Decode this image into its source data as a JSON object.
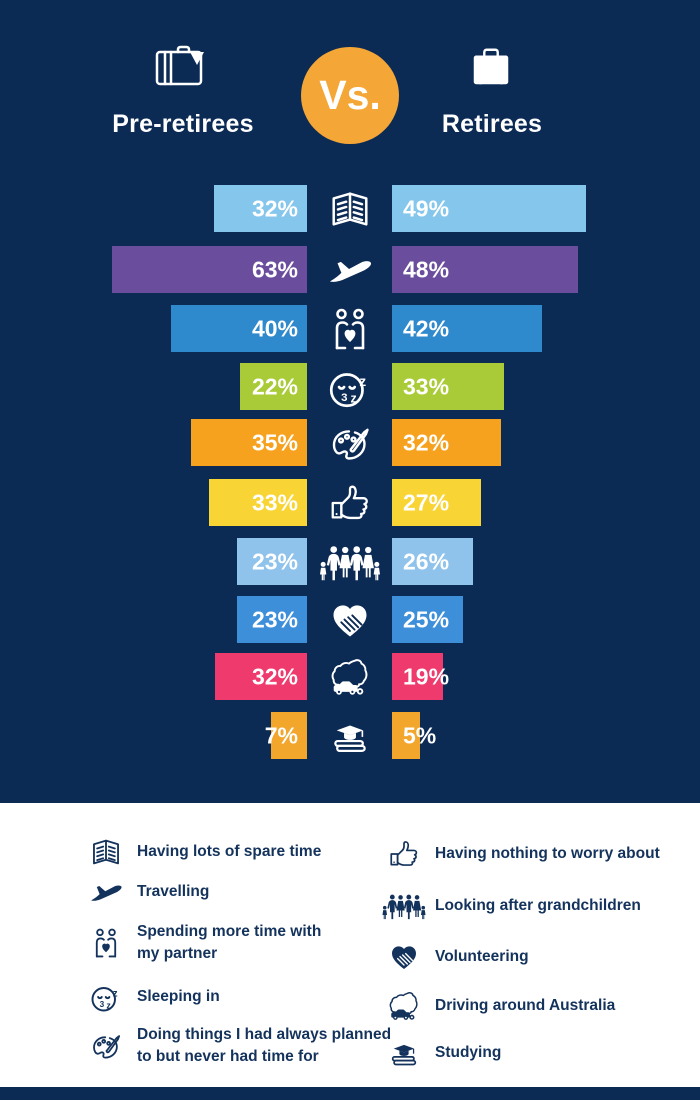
{
  "header": {
    "left_label": "Pre-retirees",
    "right_label": "Retirees",
    "vs_label": "Vs.",
    "left_icon": "open-suitcase-icon",
    "right_icon": "suitcase-icon"
  },
  "chart_data": {
    "type": "bar",
    "orientation": "horizontal-paired-pyramid",
    "title": "Pre-retirees Vs. Retirees",
    "series": [
      {
        "name": "Pre-retirees"
      },
      {
        "name": "Retirees"
      }
    ],
    "unit": "%",
    "legend_position": "bottom",
    "rows": [
      {
        "label": "Having lots of spare time",
        "icon": "book",
        "color": "#85C6ED",
        "pre": 32,
        "ret": 49,
        "pre_w": 93,
        "ret_w": 194
      },
      {
        "label": "Travelling",
        "icon": "plane",
        "color": "#6A4E9D",
        "pre": 63,
        "ret": 48,
        "pre_w": 195,
        "ret_w": 186
      },
      {
        "label": "Spending more time with my partner",
        "icon": "couple",
        "color": "#2F8ACD",
        "pre": 40,
        "ret": 42,
        "pre_w": 136,
        "ret_w": 150
      },
      {
        "label": "Sleeping in",
        "icon": "sleep",
        "color": "#A9CB37",
        "pre": 22,
        "ret": 33,
        "pre_w": 67,
        "ret_w": 112
      },
      {
        "label": "Doing things I had always planned to but never had time for",
        "icon": "palette",
        "color": "#F6A21F",
        "pre": 35,
        "ret": 32,
        "pre_w": 116,
        "ret_w": 109
      },
      {
        "label": "Having nothing to worry about",
        "icon": "thumb",
        "color": "#F8D435",
        "pre": 33,
        "ret": 27,
        "pre_w": 98,
        "ret_w": 89
      },
      {
        "label": "Looking after grandchildren",
        "icon": "family",
        "color": "#8FC3EC",
        "pre": 23,
        "ret": 26,
        "pre_w": 70,
        "ret_w": 81
      },
      {
        "label": "Volunteering",
        "icon": "heart",
        "color": "#3E8FDA",
        "pre": 23,
        "ret": 25,
        "pre_w": 70,
        "ret_w": 71
      },
      {
        "label": "Driving around Australia",
        "icon": "aus",
        "color": "#EE3A6D",
        "pre": 32,
        "ret": 19,
        "pre_w": 92,
        "ret_w": 51
      },
      {
        "label": "Studying",
        "icon": "study",
        "color": "#F3A62C",
        "pre": 7,
        "ret": 5,
        "pre_w": 36,
        "ret_w": 28
      }
    ]
  },
  "legend": {
    "left": [
      {
        "icon": "book",
        "lines": [
          "Having lots of spare time"
        ]
      },
      {
        "icon": "plane",
        "lines": [
          "Travelling"
        ]
      },
      {
        "icon": "couple",
        "lines": [
          "Spending more time with",
          "my partner"
        ]
      },
      {
        "icon": "sleep",
        "lines": [
          "Sleeping in"
        ]
      },
      {
        "icon": "palette",
        "lines": [
          "Doing things I had always planned",
          "to but never had time for"
        ]
      }
    ],
    "right": [
      {
        "icon": "thumb",
        "lines": [
          "Having nothing to worry about"
        ]
      },
      {
        "icon": "family",
        "lines": [
          "Looking after grandchildren"
        ]
      },
      {
        "icon": "heart",
        "lines": [
          "Volunteering"
        ]
      },
      {
        "icon": "aus",
        "lines": [
          "Driving around Australia"
        ]
      },
      {
        "icon": "study",
        "lines": [
          "Studying"
        ]
      }
    ]
  },
  "colors": {
    "background_navy": "#0B2A54",
    "accent_orange": "#F4A637",
    "legend_text": "#14335C",
    "bar_value_text": "#FFFFFF"
  }
}
